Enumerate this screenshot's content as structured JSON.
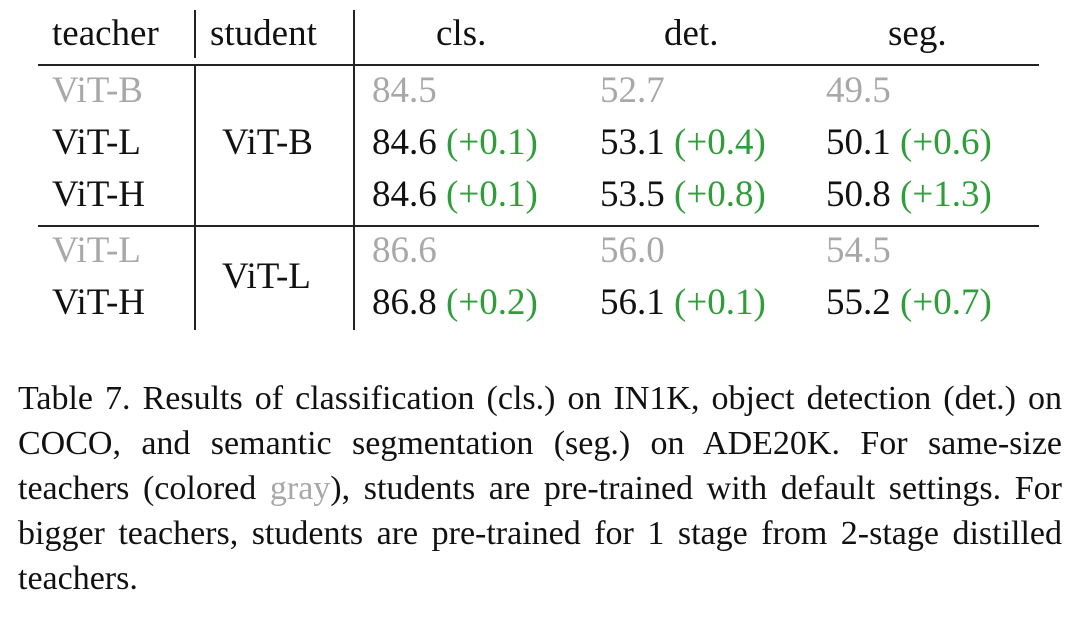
{
  "table": {
    "headers": {
      "teacher": "teacher",
      "student": "student",
      "cls": "cls.",
      "det": "det.",
      "seg": "seg."
    },
    "groups": [
      {
        "student": "ViT-B",
        "rows": [
          {
            "teacher": "ViT-B",
            "same_size": true,
            "cls": "84.5",
            "cls_delta": "",
            "det": "52.7",
            "det_delta": "",
            "seg": "49.5",
            "seg_delta": ""
          },
          {
            "teacher": "ViT-L",
            "same_size": false,
            "cls": "84.6",
            "cls_delta": "(+0.1)",
            "det": "53.1",
            "det_delta": "(+0.4)",
            "seg": "50.1",
            "seg_delta": "(+0.6)"
          },
          {
            "teacher": "ViT-H",
            "same_size": false,
            "cls": "84.6",
            "cls_delta": "(+0.1)",
            "det": "53.5",
            "det_delta": "(+0.8)",
            "seg": "50.8",
            "seg_delta": "(+1.3)"
          }
        ]
      },
      {
        "student": "ViT-L",
        "rows": [
          {
            "teacher": "ViT-L",
            "same_size": true,
            "cls": "86.6",
            "cls_delta": "",
            "det": "56.0",
            "det_delta": "",
            "seg": "54.5",
            "seg_delta": ""
          },
          {
            "teacher": "ViT-H",
            "same_size": false,
            "cls": "86.8",
            "cls_delta": "(+0.2)",
            "det": "56.1",
            "det_delta": "(+0.1)",
            "seg": "55.2",
            "seg_delta": "(+0.7)"
          }
        ]
      }
    ]
  },
  "caption": {
    "part1": "Table 7. Results of classification (cls.) on IN1K, object detection (det.) on COCO, and semantic segmentation (seg.) on ADE20K. For same-size teachers (colored ",
    "gray_word": "gray",
    "part2": "), students are pre-trained with default settings. For bigger teachers, students are pre-trained for 1 stage from 2-stage distilled teachers."
  },
  "colors": {
    "gray": "#a8a8a8",
    "green": "#2f9e3a",
    "text": "#111111"
  }
}
